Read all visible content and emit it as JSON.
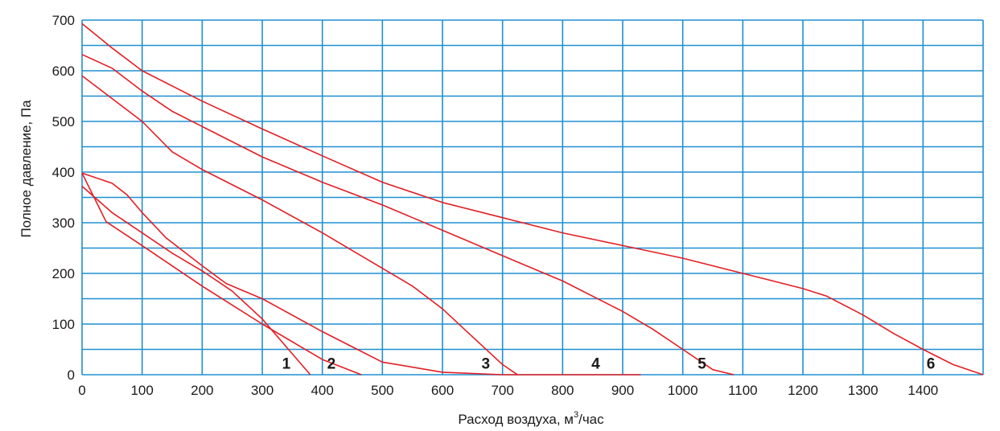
{
  "chart_data": {
    "type": "line",
    "title": "",
    "xlabel": "Расход воздуха, м",
    "xlabel_sup": "3",
    "xlabel_tail": "/час",
    "ylabel": "Полное давление, Па",
    "xlim": [
      0,
      1500
    ],
    "ylim": [
      0,
      700
    ],
    "x_ticks": [
      0,
      100,
      200,
      300,
      400,
      500,
      600,
      700,
      800,
      900,
      1000,
      1100,
      1200,
      1300,
      1400
    ],
    "x_tick_labels": [
      "0",
      "100",
      "200",
      "300",
      "400",
      "500",
      "600",
      "700",
      "800",
      "900",
      "1000",
      "1100",
      "1200",
      "1300",
      "1400"
    ],
    "y_ticks": [
      0,
      100,
      200,
      300,
      400,
      500,
      600,
      700
    ],
    "y_tick_labels": [
      "0",
      "100",
      "200",
      "300",
      "400",
      "500",
      "600",
      "700"
    ],
    "x_grid_step": 100,
    "y_grid_step": 50,
    "grid": true,
    "grid_color": "#1e90d0",
    "line_color": "#e31e24",
    "series": [
      {
        "label": "1",
        "label_at": [
          340,
          12
        ],
        "x": [
          0,
          50,
          100,
          150,
          200,
          250,
          300,
          340,
          380
        ],
        "y": [
          372,
          320,
          280,
          240,
          205,
          165,
          110,
          55,
          0
        ]
      },
      {
        "label": "2",
        "label_at": [
          415,
          12
        ],
        "x": [
          0,
          40,
          100,
          200,
          300,
          400,
          465
        ],
        "y": [
          398,
          302,
          255,
          175,
          100,
          30,
          0
        ]
      },
      {
        "label": "3",
        "label_at": [
          672,
          12
        ],
        "x": [
          0,
          50,
          100,
          150,
          200,
          300,
          400,
          500,
          550,
          600,
          650,
          700,
          725
        ],
        "y": [
          590,
          545,
          500,
          440,
          405,
          345,
          280,
          210,
          175,
          130,
          75,
          20,
          0
        ]
      },
      {
        "label": "4",
        "label_at": [
          855,
          12
        ],
        "x": [
          0,
          50,
          75,
          100,
          140,
          200,
          240,
          300,
          400,
          450,
          500,
          600,
          700,
          800,
          900,
          930
        ],
        "y": [
          398,
          378,
          355,
          320,
          270,
          215,
          180,
          150,
          85,
          55,
          25,
          5,
          0,
          0,
          0,
          0
        ]
      },
      {
        "label": "5",
        "label_at": [
          1032,
          12
        ],
        "x": [
          0,
          50,
          100,
          150,
          200,
          300,
          400,
          500,
          600,
          700,
          800,
          900,
          950,
          1000,
          1050,
          1085
        ],
        "y": [
          632,
          605,
          560,
          520,
          490,
          430,
          380,
          335,
          285,
          235,
          185,
          125,
          90,
          50,
          10,
          0
        ]
      },
      {
        "label": "6",
        "label_at": [
          1413,
          12
        ],
        "x": [
          0,
          50,
          100,
          200,
          300,
          400,
          500,
          600,
          700,
          800,
          900,
          1000,
          1100,
          1150,
          1200,
          1240,
          1300,
          1350,
          1400,
          1450,
          1500
        ],
        "y": [
          693,
          645,
          600,
          540,
          485,
          432,
          380,
          340,
          310,
          280,
          255,
          230,
          200,
          185,
          170,
          155,
          118,
          82,
          50,
          20,
          0
        ]
      }
    ]
  }
}
